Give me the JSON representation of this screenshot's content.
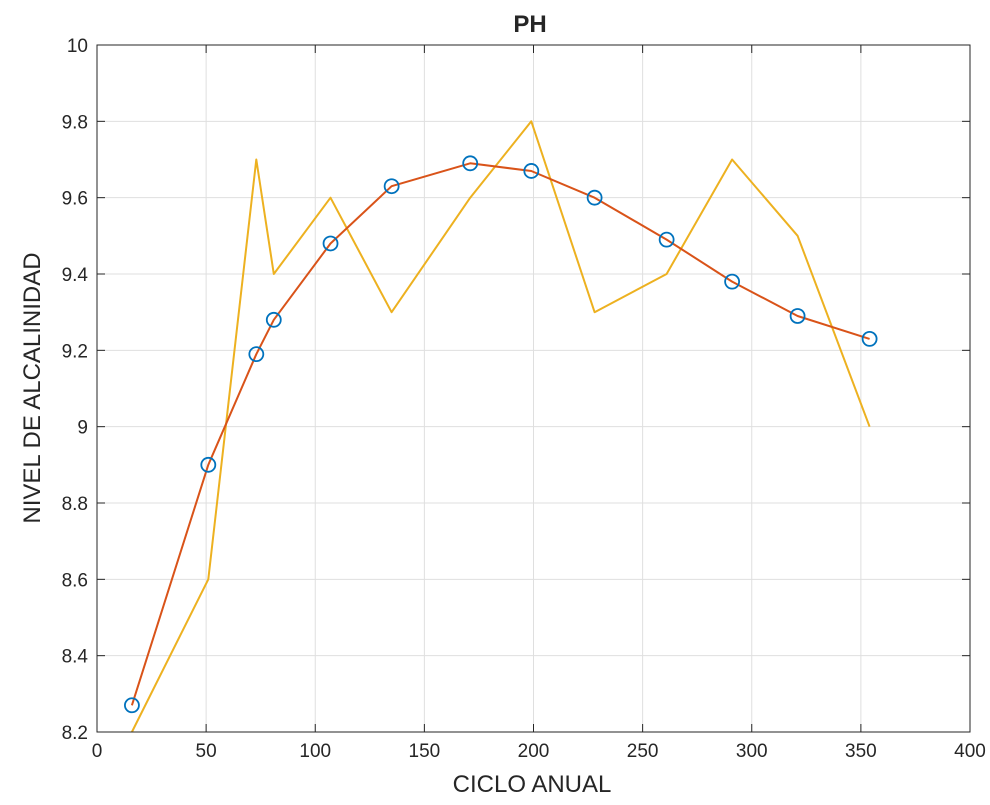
{
  "chart_data": {
    "type": "line",
    "title": "PH",
    "xlabel": "CICLO ANUAL",
    "ylabel": "NIVEL DE ALCALINIDAD",
    "xlim": [
      0,
      400
    ],
    "ylim": [
      8.2,
      10
    ],
    "xticks": [
      "0",
      "50",
      "100",
      "150",
      "200",
      "250",
      "300",
      "350",
      "400"
    ],
    "yticks": [
      "8.2",
      "8.4",
      "8.6",
      "8.8",
      "9",
      "9.2",
      "9.4",
      "9.6",
      "9.8",
      "10"
    ],
    "grid": true,
    "legend": "none",
    "series": [
      {
        "style": "markers",
        "color": "#0072bd",
        "x": [
          16,
          51,
          73,
          81,
          107,
          135,
          171,
          199,
          228,
          261,
          291,
          321,
          354
        ],
        "y": [
          8.27,
          8.9,
          9.19,
          9.28,
          9.48,
          9.63,
          9.69,
          9.67,
          9.6,
          9.49,
          9.38,
          9.29,
          9.23
        ]
      },
      {
        "style": "line",
        "color": "#d95319",
        "x": [
          16,
          51,
          73,
          81,
          107,
          135,
          171,
          199,
          228,
          261,
          291,
          321,
          354
        ],
        "y": [
          8.27,
          8.9,
          9.19,
          9.28,
          9.48,
          9.63,
          9.69,
          9.67,
          9.6,
          9.49,
          9.38,
          9.29,
          9.23
        ]
      },
      {
        "style": "line",
        "color": "#edb120",
        "x": [
          16,
          51,
          73,
          81,
          107,
          135,
          171,
          199,
          228,
          261,
          291,
          321,
          354
        ],
        "y": [
          8.2,
          8.6,
          9.7,
          9.4,
          9.6,
          9.3,
          9.6,
          9.8,
          9.3,
          9.4,
          9.7,
          9.5,
          9.0
        ]
      }
    ]
  }
}
